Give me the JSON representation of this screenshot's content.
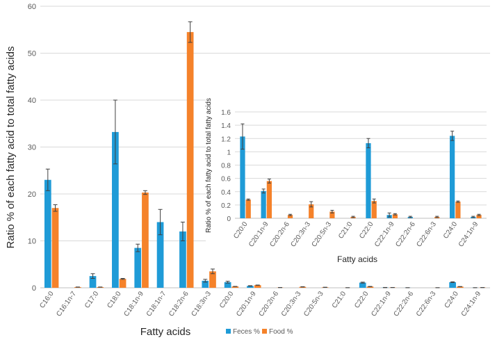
{
  "colors": {
    "feces": "#1F9BD7",
    "food": "#F5822A",
    "grid": "#D9D9D9",
    "axis": "#BFBFBF",
    "text": "#595959"
  },
  "legend": {
    "position": "bottom",
    "items": [
      "Feces %",
      "Food %"
    ]
  },
  "chart_data": [
    {
      "type": "bar",
      "title": "",
      "xlabel": "Fatty acids",
      "ylabel": "Ratio % of each fatty acid to total fatty acids",
      "ylim": [
        0,
        60
      ],
      "yticks": [
        0,
        10,
        20,
        30,
        40,
        50,
        60
      ],
      "grid": true,
      "categories": [
        "C16:0",
        "C16:1n-7",
        "C17:0",
        "C18:0",
        "C18:1n-9",
        "C18:1n-7",
        "C18:2n-6",
        "C18:3n-3",
        "C20:0",
        "C20:1n-9",
        "C20:2n-6",
        "C20:3n-3",
        "C20:5n-3",
        "C21:0",
        "C22:0",
        "C22:1n-9",
        "C22:2n-6",
        "C22:6n-3",
        "C24:0",
        "C24:1n-9"
      ],
      "series": [
        {
          "name": "Feces %",
          "values": [
            23.0,
            0,
            2.5,
            33.2,
            8.5,
            14.0,
            12.0,
            1.5,
            1.2,
            0.4,
            0,
            0,
            0,
            0,
            1.1,
            0.05,
            0.02,
            0,
            1.2,
            0.02
          ],
          "errors": [
            2.3,
            0,
            0.5,
            6.8,
            0.8,
            2.7,
            2.0,
            0.3,
            0.2,
            0.05,
            0,
            0,
            0,
            0,
            0.1,
            0.03,
            0.01,
            0,
            0.08,
            0.01
          ]
        },
        {
          "name": "Food %",
          "values": [
            17.0,
            0.15,
            0.15,
            1.9,
            20.3,
            0,
            54.5,
            3.5,
            0.28,
            0.56,
            0.05,
            0.2,
            0.1,
            0.02,
            0.26,
            0.06,
            0,
            0.02,
            0.25,
            0.05
          ],
          "errors": [
            0.7,
            0.02,
            0.02,
            0.1,
            0.4,
            0,
            2.2,
            0.5,
            0.02,
            0.03,
            0.01,
            0.03,
            0.02,
            0.01,
            0.03,
            0.01,
            0,
            0.01,
            0.01,
            0.01
          ]
        }
      ]
    },
    {
      "type": "bar",
      "title": "",
      "xlabel": "Fatty acids",
      "ylabel": "Ratio % of each fatty acid to total fatty acids",
      "ylim": [
        0,
        1.6
      ],
      "yticks": [
        "0",
        "0.2",
        "0.4",
        "0.6",
        "0.8",
        "1",
        "1.2",
        "1.4",
        "1.6"
      ],
      "grid": true,
      "categories": [
        "C20:0",
        "C20:1n-9",
        "C20:2n-6",
        "C20:3n-3",
        "C20:5n-3",
        "C21:0",
        "C22:0",
        "C22:1n-9",
        "C22:2n-6",
        "C22:6n-3",
        "C24:0",
        "C24:1n-9"
      ],
      "series": [
        {
          "name": "Feces %",
          "values": [
            1.23,
            0.41,
            0,
            0,
            0,
            0,
            1.13,
            0.05,
            0.02,
            0,
            1.24,
            0.02
          ],
          "errors": [
            0.19,
            0.03,
            0,
            0,
            0,
            0,
            0.07,
            0.03,
            0.01,
            0,
            0.07,
            0.01
          ]
        },
        {
          "name": "Food %",
          "values": [
            0.28,
            0.56,
            0.05,
            0.21,
            0.1,
            0.02,
            0.26,
            0.06,
            0,
            0.02,
            0.25,
            0.05
          ],
          "errors": [
            0.01,
            0.03,
            0.01,
            0.04,
            0.02,
            0.01,
            0.03,
            0.01,
            0,
            0.01,
            0.01,
            0.01
          ]
        }
      ]
    }
  ]
}
